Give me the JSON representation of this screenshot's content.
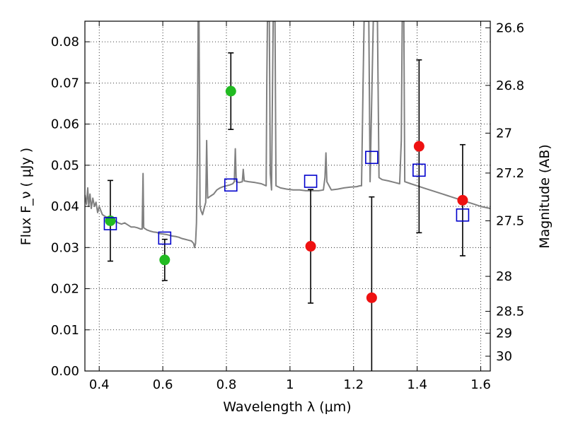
{
  "chart_data": {
    "type": "scatter",
    "xlabel": "Wavelength  λ (μm)",
    "ylabel": "Flux  F_ν  ( μJy )",
    "y2label": "Magnitude (AB)",
    "xlim": [
      0.355,
      1.63
    ],
    "ylim": [
      0.0,
      0.085
    ],
    "grid": true,
    "x_ticks": [
      {
        "value": 0.4,
        "label": "0.4"
      },
      {
        "value": 0.6,
        "label": "0.6"
      },
      {
        "value": 0.8,
        "label": "0.8"
      },
      {
        "value": 1.0,
        "label": "1"
      },
      {
        "value": 1.2,
        "label": "1.2"
      },
      {
        "value": 1.4,
        "label": "1.4"
      },
      {
        "value": 1.6,
        "label": "1.6"
      }
    ],
    "y_ticks": [
      {
        "value": 0.0,
        "label": "0.00"
      },
      {
        "value": 0.01,
        "label": "0.01"
      },
      {
        "value": 0.02,
        "label": "0.02"
      },
      {
        "value": 0.03,
        "label": "0.03"
      },
      {
        "value": 0.04,
        "label": "0.04"
      },
      {
        "value": 0.05,
        "label": "0.05"
      },
      {
        "value": 0.06,
        "label": "0.06"
      },
      {
        "value": 0.07,
        "label": "0.07"
      },
      {
        "value": 0.08,
        "label": "0.08"
      }
    ],
    "y2_ticks": [
      {
        "flux": 0.0834,
        "label": "26.6"
      },
      {
        "flux": 0.0694,
        "label": "26.8"
      },
      {
        "flux": 0.0578,
        "label": "27"
      },
      {
        "flux": 0.0481,
        "label": "27.2"
      },
      {
        "flux": 0.0365,
        "label": "27.5"
      },
      {
        "flux": 0.023,
        "label": "28"
      },
      {
        "flux": 0.0145,
        "label": "28.5"
      },
      {
        "flux": 0.0092,
        "label": "29"
      },
      {
        "flux": 0.0036,
        "label": "30"
      }
    ],
    "colors": {
      "green": "#22bb22",
      "red": "#ee1111",
      "blue": "#0000cc",
      "model": "#808080",
      "errorbar": "#000000"
    },
    "points": [
      {
        "x": 0.435,
        "y": 0.0365,
        "yerr": 0.0098,
        "color": "green"
      },
      {
        "x": 0.606,
        "y": 0.027,
        "yerr": 0.005,
        "color": "green"
      },
      {
        "x": 0.814,
        "y": 0.068,
        "yerr": 0.0093,
        "color": "green"
      },
      {
        "x": 1.065,
        "y": 0.0303,
        "yerr": 0.0138,
        "color": "red"
      },
      {
        "x": 1.257,
        "y": 0.0178,
        "yerr": 0.0245,
        "color": "red"
      },
      {
        "x": 1.406,
        "y": 0.0546,
        "yerr": 0.021,
        "color": "red"
      },
      {
        "x": 1.543,
        "y": 0.0415,
        "yerr": 0.0135,
        "color": "red"
      }
    ],
    "model_photometry": [
      {
        "x": 0.435,
        "y": 0.0358
      },
      {
        "x": 0.606,
        "y": 0.0323
      },
      {
        "x": 0.814,
        "y": 0.0452
      },
      {
        "x": 1.065,
        "y": 0.0461
      },
      {
        "x": 1.257,
        "y": 0.0519
      },
      {
        "x": 1.406,
        "y": 0.0488
      },
      {
        "x": 1.543,
        "y": 0.0379
      }
    ],
    "model_spectrum": [
      [
        0.355,
        0.0428
      ],
      [
        0.36,
        0.0405
      ],
      [
        0.364,
        0.0445
      ],
      [
        0.367,
        0.04
      ],
      [
        0.371,
        0.043
      ],
      [
        0.375,
        0.0395
      ],
      [
        0.38,
        0.042
      ],
      [
        0.385,
        0.04
      ],
      [
        0.39,
        0.041
      ],
      [
        0.395,
        0.0385
      ],
      [
        0.4,
        0.04
      ],
      [
        0.41,
        0.038
      ],
      [
        0.42,
        0.0375
      ],
      [
        0.43,
        0.0372
      ],
      [
        0.44,
        0.0368
      ],
      [
        0.45,
        0.0365
      ],
      [
        0.46,
        0.036
      ],
      [
        0.47,
        0.0357
      ],
      [
        0.48,
        0.036
      ],
      [
        0.49,
        0.0355
      ],
      [
        0.5,
        0.035
      ],
      [
        0.51,
        0.035
      ],
      [
        0.52,
        0.0348
      ],
      [
        0.53,
        0.0345
      ],
      [
        0.535,
        0.0345
      ],
      [
        0.538,
        0.048
      ],
      [
        0.54,
        0.0348
      ],
      [
        0.55,
        0.0343
      ],
      [
        0.56,
        0.034
      ],
      [
        0.57,
        0.0338
      ],
      [
        0.58,
        0.0337
      ],
      [
        0.59,
        0.0334
      ],
      [
        0.6,
        0.0333
      ],
      [
        0.61,
        0.0332
      ],
      [
        0.62,
        0.033
      ],
      [
        0.63,
        0.0328
      ],
      [
        0.64,
        0.0327
      ],
      [
        0.65,
        0.0325
      ],
      [
        0.66,
        0.0322
      ],
      [
        0.67,
        0.032
      ],
      [
        0.68,
        0.0318
      ],
      [
        0.69,
        0.0316
      ],
      [
        0.697,
        0.031
      ],
      [
        0.7,
        0.03
      ],
      [
        0.703,
        0.031
      ],
      [
        0.706,
        0.036
      ],
      [
        0.709,
        0.054
      ],
      [
        0.711,
        0.085
      ],
      [
        0.714,
        0.085
      ],
      [
        0.717,
        0.04
      ],
      [
        0.72,
        0.039
      ],
      [
        0.725,
        0.038
      ],
      [
        0.73,
        0.0395
      ],
      [
        0.735,
        0.041
      ],
      [
        0.738,
        0.056
      ],
      [
        0.741,
        0.042
      ],
      [
        0.75,
        0.0425
      ],
      [
        0.76,
        0.043
      ],
      [
        0.77,
        0.044
      ],
      [
        0.78,
        0.0445
      ],
      [
        0.79,
        0.0448
      ],
      [
        0.8,
        0.045
      ],
      [
        0.81,
        0.0452
      ],
      [
        0.82,
        0.0455
      ],
      [
        0.825,
        0.046
      ],
      [
        0.828,
        0.054
      ],
      [
        0.831,
        0.046
      ],
      [
        0.84,
        0.0458
      ],
      [
        0.85,
        0.046
      ],
      [
        0.853,
        0.049
      ],
      [
        0.856,
        0.0462
      ],
      [
        0.87,
        0.046
      ],
      [
        0.89,
        0.0458
      ],
      [
        0.91,
        0.0455
      ],
      [
        0.925,
        0.045
      ],
      [
        0.927,
        0.07
      ],
      [
        0.929,
        0.085
      ],
      [
        0.935,
        0.085
      ],
      [
        0.938,
        0.048
      ],
      [
        0.942,
        0.044
      ],
      [
        0.947,
        0.085
      ],
      [
        0.953,
        0.085
      ],
      [
        0.956,
        0.045
      ],
      [
        0.97,
        0.0445
      ],
      [
        0.99,
        0.0442
      ],
      [
        1.01,
        0.044
      ],
      [
        1.03,
        0.044
      ],
      [
        1.05,
        0.0438
      ],
      [
        1.07,
        0.0438
      ],
      [
        1.09,
        0.0438
      ],
      [
        1.105,
        0.044
      ],
      [
        1.11,
        0.047
      ],
      [
        1.113,
        0.053
      ],
      [
        1.116,
        0.046
      ],
      [
        1.13,
        0.044
      ],
      [
        1.15,
        0.0442
      ],
      [
        1.17,
        0.0445
      ],
      [
        1.19,
        0.0447
      ],
      [
        1.21,
        0.0448
      ],
      [
        1.22,
        0.045
      ],
      [
        1.225,
        0.045
      ],
      [
        1.23,
        0.07
      ],
      [
        1.233,
        0.085
      ],
      [
        1.248,
        0.085
      ],
      [
        1.252,
        0.046
      ],
      [
        1.262,
        0.085
      ],
      [
        1.275,
        0.085
      ],
      [
        1.28,
        0.047
      ],
      [
        1.29,
        0.0465
      ],
      [
        1.31,
        0.0462
      ],
      [
        1.33,
        0.0458
      ],
      [
        1.345,
        0.0455
      ],
      [
        1.35,
        0.056
      ],
      [
        1.353,
        0.085
      ],
      [
        1.358,
        0.085
      ],
      [
        1.361,
        0.046
      ],
      [
        1.38,
        0.0455
      ],
      [
        1.4,
        0.045
      ],
      [
        1.42,
        0.0445
      ],
      [
        1.44,
        0.044
      ],
      [
        1.46,
        0.0435
      ],
      [
        1.48,
        0.043
      ],
      [
        1.5,
        0.0425
      ],
      [
        1.52,
        0.042
      ],
      [
        1.54,
        0.0415
      ],
      [
        1.56,
        0.041
      ],
      [
        1.58,
        0.0405
      ],
      [
        1.6,
        0.04
      ],
      [
        1.63,
        0.0395
      ]
    ]
  }
}
